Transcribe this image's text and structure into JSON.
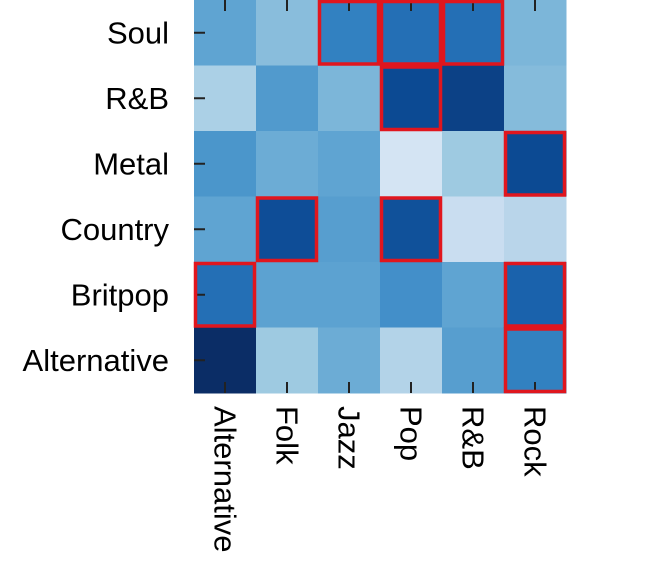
{
  "chart_data": {
    "type": "heatmap",
    "rows": [
      "Soul",
      "R&B",
      "Metal",
      "Country",
      "Britpop",
      "Alternative"
    ],
    "columns": [
      "Alternative",
      "Folk",
      "Jazz",
      "Pop",
      "R&B",
      "Rock"
    ],
    "values": [
      [
        0.45,
        0.35,
        0.62,
        0.7,
        0.7,
        0.38
      ],
      [
        0.25,
        0.5,
        0.38,
        0.9,
        0.93,
        0.36
      ],
      [
        0.52,
        0.42,
        0.45,
        0.1,
        0.3,
        0.9
      ],
      [
        0.45,
        0.88,
        0.48,
        0.86,
        0.14,
        0.2
      ],
      [
        0.7,
        0.46,
        0.46,
        0.55,
        0.45,
        0.76
      ],
      [
        1.0,
        0.3,
        0.42,
        0.22,
        0.48,
        0.62
      ]
    ],
    "value_range": [
      0,
      1
    ],
    "colormap": [
      "#f0f6fc",
      "#0b2d66"
    ],
    "highlighted_cells": [
      [
        0,
        2
      ],
      [
        0,
        3
      ],
      [
        0,
        4
      ],
      [
        1,
        3
      ],
      [
        2,
        5
      ],
      [
        3,
        1
      ],
      [
        3,
        3
      ],
      [
        4,
        0
      ],
      [
        4,
        5
      ],
      [
        5,
        5
      ]
    ],
    "highlight_color": "#e0161e",
    "legend": "none",
    "grid": false
  }
}
